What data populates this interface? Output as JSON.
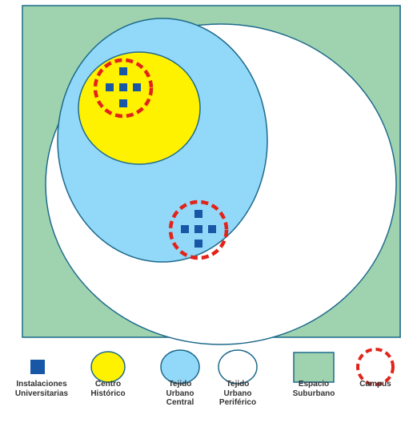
{
  "colors": {
    "suburban_fill": "#9fd3af",
    "frame_stroke": "#1f6a8c",
    "peripheral_fill": "#ffffff",
    "central_fill": "#92d8f8",
    "historic_fill": "#fff200",
    "facility_fill": "#1757a6",
    "campus_stroke": "#e2231a"
  },
  "diagram": {
    "zones": [
      {
        "name": "Espacio Suburbano",
        "shape": "rectangle"
      },
      {
        "name": "Tejido Urbano Periférico",
        "shape": "ellipse"
      },
      {
        "name": "Tejido Urbano Central",
        "shape": "ellipse"
      },
      {
        "name": "Centro Histórico",
        "shape": "ellipse"
      }
    ],
    "campuses": [
      {
        "zone": "Centro Histórico",
        "facilities": 5
      },
      {
        "zone": "Tejido Urbano Central",
        "facilities": 5
      }
    ]
  },
  "legend": {
    "items": [
      {
        "icon": "blue-square-icon",
        "label": "Instalaciones\nUniversitarias"
      },
      {
        "icon": "yellow-ellipse-icon",
        "label": "Centro\nHistórico"
      },
      {
        "icon": "lightblue-ellipse-icon",
        "label": "Tejido\nUrbano\nCentral"
      },
      {
        "icon": "white-ellipse-icon",
        "label": "Tejido\nUrbano\nPeriférico"
      },
      {
        "icon": "green-rectangle-icon",
        "label": "Espacio\nSuburbano"
      },
      {
        "icon": "red-dashed-circle-icon",
        "label": "Campus"
      }
    ]
  }
}
